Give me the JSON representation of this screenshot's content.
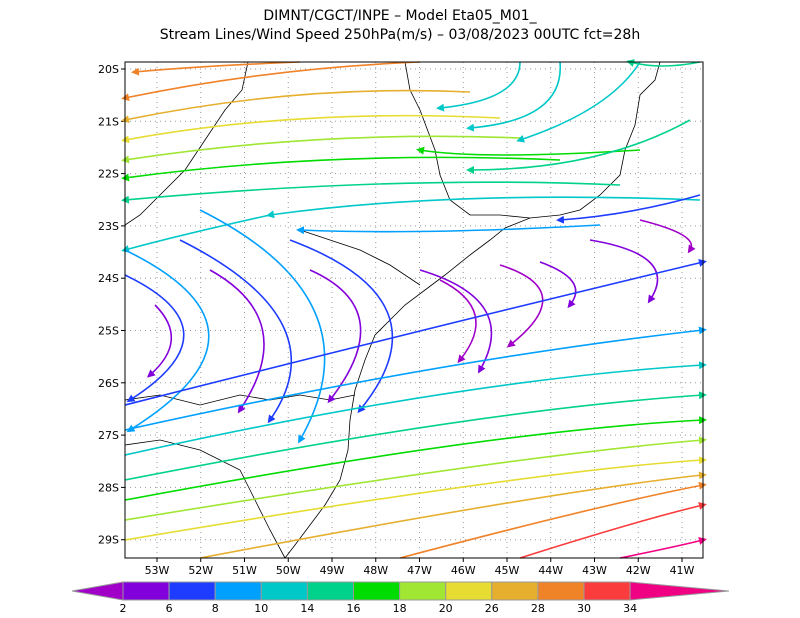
{
  "header": {
    "line1": "DIMNT/CGCT/INPE –  Model Eta05_M01_",
    "line2": "Stream Lines/Wind Speed 250hPa(m/s) –  03/08/2023 00UTC fct=28h"
  },
  "map": {
    "lat_labels": [
      "20S",
      "21S",
      "22S",
      "23S",
      "24S",
      "25S",
      "26S",
      "27S",
      "28S",
      "29S"
    ],
    "lon_labels": [
      "53W",
      "52W",
      "51W",
      "50W",
      "49W",
      "48W",
      "47W",
      "46W",
      "45W",
      "44W",
      "43W",
      "42W",
      "41W"
    ]
  },
  "colorbar": {
    "labels": [
      "2",
      "6",
      "8",
      "10",
      "14",
      "16",
      "18",
      "20",
      "26",
      "28",
      "30",
      "34"
    ],
    "colors": [
      "#a000c8",
      "#8200dc",
      "#1e3cff",
      "#00a0ff",
      "#00c8c8",
      "#00d28c",
      "#00dc00",
      "#a0e632",
      "#e6dc32",
      "#e6af2d",
      "#f08228",
      "#fa3c3c",
      "#f00082"
    ]
  }
}
